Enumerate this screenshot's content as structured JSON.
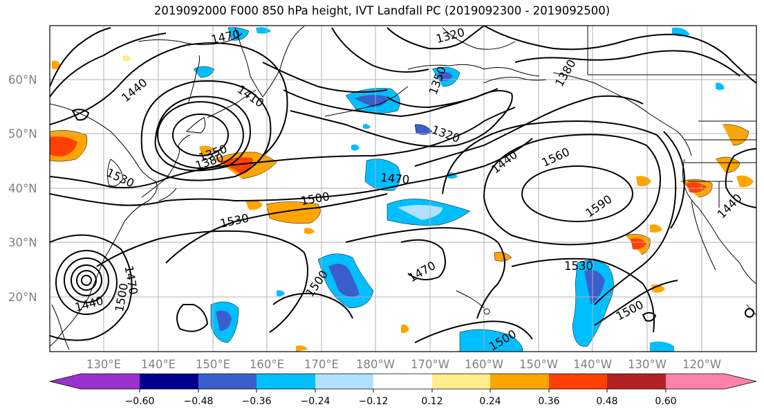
{
  "title": "2019092000 F000 850 hPa height, IVT Landfall PC (2019092300 - 2019092500)",
  "lat_labels": [
    "60°N",
    "50°N",
    "40°N",
    "30°N",
    "20°N"
  ],
  "lon_labels": [
    "130°E",
    "140°E",
    "150°E",
    "160°E",
    "170°E",
    "180°W",
    "170°W",
    "160°W",
    "150°W",
    "140°W",
    "130°W",
    "120°W"
  ],
  "contour_labels": {
    "c1470_top": "1470",
    "c1320_top": "1320",
    "c1440_nw": "1440",
    "c1410": "1410",
    "c1350": "1350",
    "c1380_ne": "1380",
    "c1320_mid": "1320",
    "c1440_mid": "1440",
    "c1560": "1560",
    "c1350_low": "1350",
    "c1380_low": "1380",
    "c1530_w": "1530",
    "c1470_mid": "1470",
    "c1500_mid": "1500",
    "c1530_mid": "1530",
    "c1590": "1590",
    "c1440_e": "1440",
    "c1470_s": "1470",
    "c1530_s": "1530",
    "c1500_sw": "1500",
    "c1500_s": "1500",
    "c1500_se": "1500",
    "c1470_ty": "1470",
    "c1440_ty": "1440",
    "c1500_ty": "1500"
  },
  "colorbar": {
    "ticks": [
      "−0.60",
      "−0.48",
      "−0.36",
      "−0.24",
      "−0.12",
      "0.12",
      "0.24",
      "0.36",
      "0.48",
      "0.60"
    ],
    "colors": [
      "#9932cc",
      "#00008b",
      "#3a5fcd",
      "#00bfff",
      "#b0e2ff",
      "#ffffff",
      "#ffec8b",
      "#ffa500",
      "#ff4000",
      "#b22222",
      "#ff82ab"
    ]
  }
}
